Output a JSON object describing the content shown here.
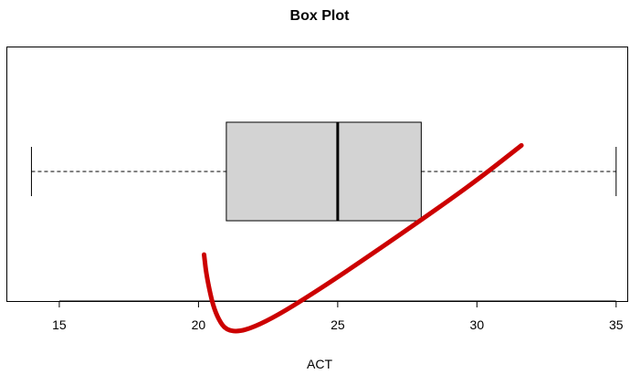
{
  "chart_data": {
    "type": "box",
    "title": "Box Plot",
    "xlabel": "ACT",
    "ylabel": "",
    "xlim": [
      13.1,
      35.4
    ],
    "xticks": [
      15,
      20,
      25,
      30,
      35
    ],
    "box": {
      "min": 14,
      "q1": 21,
      "median": 25,
      "q3": 28,
      "max": 35
    },
    "box_fill": "#d3d3d3",
    "grid": false,
    "annotation": {
      "type": "freehand-check-mark",
      "color": "#cc0000",
      "points": [
        [
          20.2,
          1.15
        ],
        [
          20.3,
          0.98
        ],
        [
          20.6,
          0.72
        ],
        [
          21.1,
          0.58
        ],
        [
          22.3,
          0.65
        ],
        [
          24.5,
          0.92
        ],
        [
          27.3,
          1.3
        ],
        [
          29.8,
          1.65
        ],
        [
          31.6,
          1.93
        ]
      ]
    }
  }
}
